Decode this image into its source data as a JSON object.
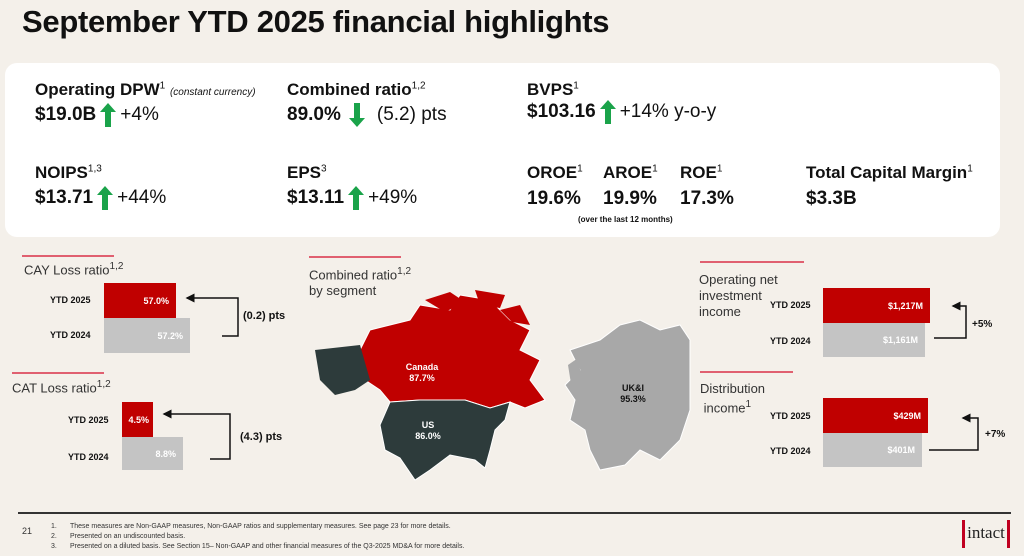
{
  "title": "September YTD 2025 financial highlights",
  "metrics": {
    "dpw": {
      "label": "Operating DPW",
      "sup": "1",
      "note": "(constant currency)",
      "value": "$19.0B",
      "change": "+4%",
      "direction": "up"
    },
    "combined": {
      "label": "Combined ratio",
      "sup": "1,2",
      "value": "89.0%",
      "change": "(5.2) pts",
      "direction": "down"
    },
    "bvps": {
      "label": "BVPS",
      "sup": "1",
      "value": "$103.16",
      "change": "+14% y-o-y",
      "direction": "up"
    },
    "noips": {
      "label": "NOIPS",
      "sup": "1,3",
      "value": "$13.71",
      "change": "+44%",
      "direction": "up"
    },
    "eps": {
      "label": "EPS",
      "sup": "3",
      "value": "$13.11",
      "change": "+49%",
      "direction": "up"
    },
    "oroe": {
      "label": "OROE",
      "sup": "1",
      "value": "19.6%"
    },
    "aroe": {
      "label": "AROE",
      "sup": "1",
      "value": "19.9%"
    },
    "roe": {
      "label": "ROE",
      "sup": "1",
      "value": "17.3%"
    },
    "roe_note": "(over the last 12 months)",
    "tcm": {
      "label": "Total Capital Margin",
      "sup": "1",
      "value": "$3.3B"
    }
  },
  "cay": {
    "title": "CAY Loss ratio",
    "sup": "1,2",
    "rows": [
      {
        "label": "YTD 2025",
        "value": "57.0%"
      },
      {
        "label": "YTD 2024",
        "value": "57.2%"
      }
    ],
    "diff": "(0.2) pts"
  },
  "cat": {
    "title": "CAT Loss ratio",
    "sup": "1,2",
    "rows": [
      {
        "label": "YTD 2025",
        "value": "4.5%"
      },
      {
        "label": "YTD 2024",
        "value": "8.8%"
      }
    ],
    "diff": "(4.3) pts"
  },
  "segment": {
    "title": "Combined ratio",
    "sup": "1,2",
    "title2": "by segment",
    "canada": {
      "name": "Canada",
      "value": "87.7%"
    },
    "us": {
      "name": "US",
      "value": "86.0%"
    },
    "uki": {
      "name": "UK&I",
      "value": "95.3%"
    }
  },
  "nii": {
    "title1": "Operating net",
    "title2": "investment",
    "title3": "income",
    "rows": [
      {
        "label": "YTD 2025",
        "value": "$1,217M"
      },
      {
        "label": "YTD 2024",
        "value": "$1,161M"
      }
    ],
    "diff": "+5%"
  },
  "dist": {
    "title1": "Distribution",
    "title2": "income",
    "sup": "1",
    "rows": [
      {
        "label": "YTD 2025",
        "value": "$429M"
      },
      {
        "label": "YTD 2024",
        "value": "$401M"
      }
    ],
    "diff": "+7%"
  },
  "footer": {
    "page": "21",
    "notes": [
      {
        "n": "1.",
        "t": "These measures are Non-GAAP measures, Non-GAAP ratios and supplementary measures. See page 23 for more details."
      },
      {
        "n": "2.",
        "t": "Presented on an undiscounted basis."
      },
      {
        "n": "3.",
        "t": "Presented on a diluted basis. See Section 15– Non-GAAP and other financial measures of the Q3-2025 MD&A for more details."
      }
    ],
    "logo": "intact"
  },
  "colors": {
    "red": "#c00000",
    "gray": "#c4c4c4",
    "green": "#1aa34a",
    "dark": "#2d3b3b"
  }
}
